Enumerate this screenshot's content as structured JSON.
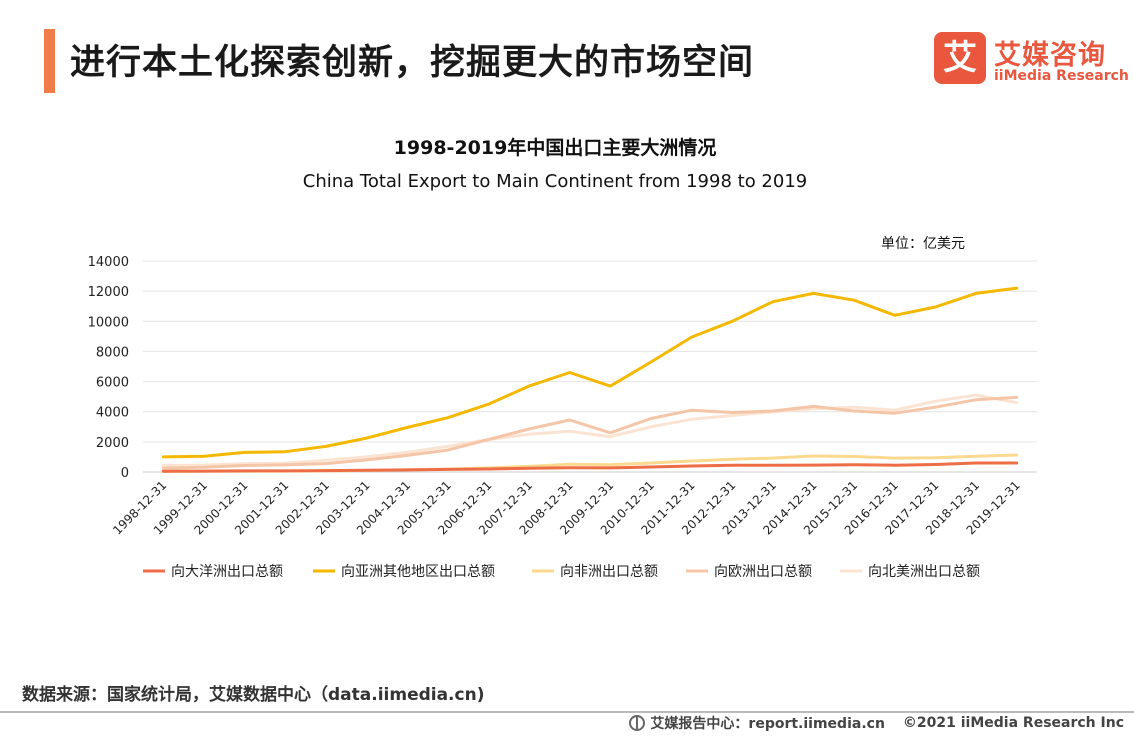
{
  "header": {
    "title": "进行本土化探索创新，挖掘更大的市场空间",
    "brand_logo_char": "艾",
    "brand_name_cn": "艾媒咨询",
    "brand_name_en": "iiMedia Research"
  },
  "unit_label": "单位：亿美元",
  "source": "数据来源：国家统计局，艾媒数据中心（data.iimedia.cn)",
  "footer": {
    "report_center": "艾媒报告中心：report.iimedia.cn",
    "copyright": "©2021  iiMedia Research  Inc"
  },
  "chart_data": {
    "type": "line",
    "title": "1998-2019年中国出口主要大洲情况",
    "subtitle": "China Total Export to Main Continent from 1998 to 2019",
    "ylim": [
      0,
      14000
    ],
    "yticks": [
      0,
      2000,
      4000,
      6000,
      8000,
      10000,
      12000,
      14000
    ],
    "grid": true,
    "legend": "bottom",
    "categories": [
      "1998-12-31",
      "1999-12-31",
      "2000-12-31",
      "2001-12-31",
      "2002-12-31",
      "2003-12-31",
      "2004-12-31",
      "2005-12-31",
      "2006-12-31",
      "2007-12-31",
      "2008-12-31",
      "2009-12-31",
      "2010-12-31",
      "2011-12-31",
      "2012-12-31",
      "2013-12-31",
      "2014-12-31",
      "2015-12-31",
      "2016-12-31",
      "2017-12-31",
      "2018-12-31",
      "2019-12-31"
    ],
    "series": [
      {
        "name": "向大洋洲出口总额",
        "color": "#ed6d46",
        "values": [
          55,
          60,
          70,
          75,
          95,
          120,
          140,
          170,
          200,
          250,
          280,
          270,
          330,
          400,
          450,
          450,
          460,
          480,
          450,
          500,
          600,
          600
        ]
      },
      {
        "name": "向亚洲其他地区出口总额",
        "color": "#f5b800",
        "values": [
          1000,
          1050,
          1300,
          1350,
          1700,
          2250,
          2950,
          3600,
          4500,
          5700,
          6600,
          5700,
          7300,
          8950,
          10000,
          11300,
          11850,
          11400,
          10400,
          10950,
          11850,
          12200
        ]
      },
      {
        "name": "向非洲出口总额",
        "color": "#fbd98f",
        "values": [
          40,
          45,
          50,
          60,
          70,
          100,
          140,
          190,
          270,
          370,
          510,
          480,
          600,
          730,
          850,
          930,
          1060,
          1030,
          920,
          950,
          1050,
          1130
        ]
      },
      {
        "name": "向欧洲出口总额",
        "color": "#f5c5a8",
        "values": [
          250,
          320,
          430,
          470,
          560,
          800,
          1100,
          1450,
          2150,
          2850,
          3450,
          2600,
          3550,
          4100,
          3950,
          4050,
          4350,
          4050,
          3900,
          4300,
          4800,
          4950
        ]
      },
      {
        "name": "向北美洲出口总额",
        "color": "#fbe3d2",
        "values": [
          430,
          460,
          560,
          580,
          780,
          1000,
          1300,
          1700,
          2150,
          2500,
          2700,
          2350,
          3000,
          3500,
          3750,
          4000,
          4200,
          4300,
          4100,
          4700,
          5100,
          4600
        ]
      }
    ]
  }
}
